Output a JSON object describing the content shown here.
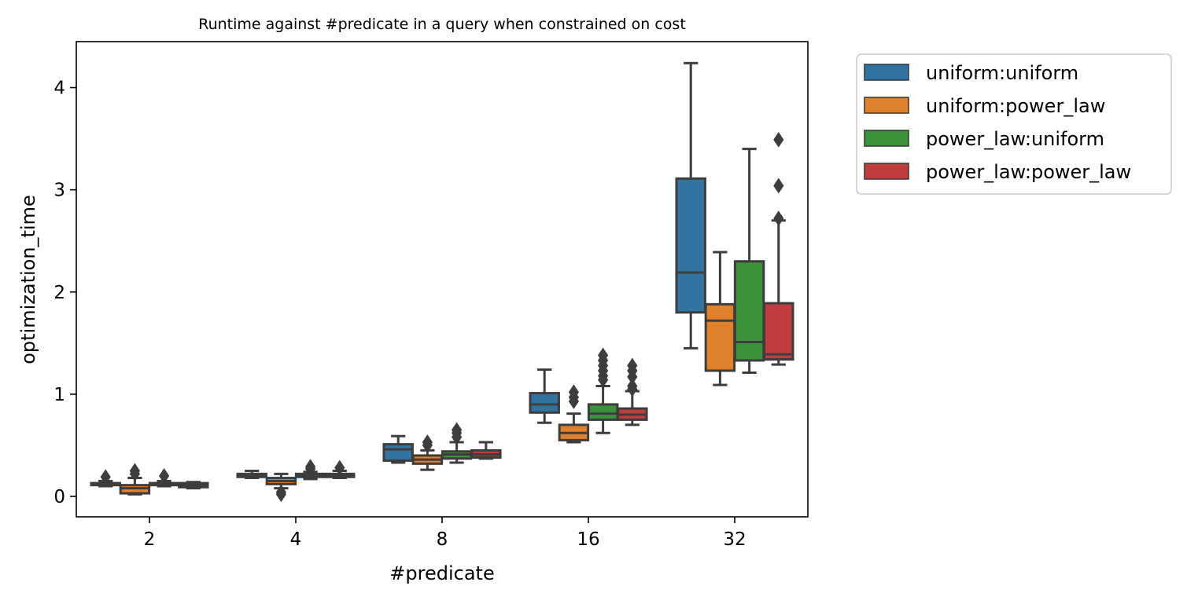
{
  "chart_data": {
    "type": "box",
    "title": "Runtime against #predicate in a query when constrained on cost",
    "xlabel": "#predicate",
    "ylabel": "optimization_time",
    "categories": [
      "2",
      "4",
      "8",
      "16",
      "32"
    ],
    "ylim": [
      -0.2,
      4.45
    ],
    "yticks": [
      0,
      1,
      2,
      3,
      4
    ],
    "legend_position": "outside-top-right",
    "series": [
      {
        "name": "uniform:uniform",
        "color": "#3274a1",
        "boxes": [
          {
            "whisker_low": 0.1,
            "q1": 0.11,
            "median": 0.12,
            "q3": 0.13,
            "whisker_high": 0.15,
            "outliers": [
              0.19
            ]
          },
          {
            "whisker_low": 0.18,
            "q1": 0.19,
            "median": 0.2,
            "q3": 0.22,
            "whisker_high": 0.25,
            "outliers": []
          },
          {
            "whisker_low": 0.33,
            "q1": 0.35,
            "median": 0.46,
            "q3": 0.51,
            "whisker_high": 0.59,
            "outliers": []
          },
          {
            "whisker_low": 0.72,
            "q1": 0.82,
            "median": 0.9,
            "q3": 1.01,
            "whisker_high": 1.24,
            "outliers": []
          },
          {
            "whisker_low": 1.45,
            "q1": 1.8,
            "median": 2.19,
            "q3": 3.11,
            "whisker_high": 4.24,
            "outliers": []
          }
        ]
      },
      {
        "name": "uniform:power_law",
        "color": "#e1812c",
        "boxes": [
          {
            "whisker_low": 0.02,
            "q1": 0.03,
            "median": 0.08,
            "q3": 0.11,
            "whisker_high": 0.18,
            "outliers": [
              0.22,
              0.25
            ]
          },
          {
            "whisker_low": 0.08,
            "q1": 0.12,
            "median": 0.15,
            "q3": 0.18,
            "whisker_high": 0.22,
            "outliers": [
              0.02,
              0.04
            ]
          },
          {
            "whisker_low": 0.26,
            "q1": 0.32,
            "median": 0.36,
            "q3": 0.4,
            "whisker_high": 0.45,
            "outliers": [
              0.5,
              0.53
            ]
          },
          {
            "whisker_low": 0.53,
            "q1": 0.55,
            "median": 0.62,
            "q3": 0.7,
            "whisker_high": 0.81,
            "outliers": [
              0.93,
              0.97,
              1.02
            ]
          },
          {
            "whisker_low": 1.09,
            "q1": 1.23,
            "median": 1.72,
            "q3": 1.88,
            "whisker_high": 2.39,
            "outliers": []
          }
        ]
      },
      {
        "name": "power_law:uniform",
        "color": "#3a923a",
        "boxes": [
          {
            "whisker_low": 0.1,
            "q1": 0.11,
            "median": 0.12,
            "q3": 0.13,
            "whisker_high": 0.15,
            "outliers": [
              0.2
            ]
          },
          {
            "whisker_low": 0.17,
            "q1": 0.19,
            "median": 0.2,
            "q3": 0.22,
            "whisker_high": 0.24,
            "outliers": [
              0.27,
              0.29
            ]
          },
          {
            "whisker_low": 0.33,
            "q1": 0.37,
            "median": 0.41,
            "q3": 0.44,
            "whisker_high": 0.53,
            "outliers": [
              0.58,
              0.62,
              0.65
            ]
          },
          {
            "whisker_low": 0.62,
            "q1": 0.75,
            "median": 0.81,
            "q3": 0.9,
            "whisker_high": 1.08,
            "outliers": [
              1.14,
              1.18,
              1.23,
              1.28,
              1.33,
              1.38
            ]
          },
          {
            "whisker_low": 1.21,
            "q1": 1.33,
            "median": 1.51,
            "q3": 2.3,
            "whisker_high": 3.4,
            "outliers": []
          }
        ]
      },
      {
        "name": "power_law:power_law",
        "color": "#c03d3e",
        "boxes": [
          {
            "whisker_low": 0.08,
            "q1": 0.09,
            "median": 0.11,
            "q3": 0.13,
            "whisker_high": 0.14,
            "outliers": []
          },
          {
            "whisker_low": 0.18,
            "q1": 0.19,
            "median": 0.2,
            "q3": 0.22,
            "whisker_high": 0.25,
            "outliers": [
              0.28
            ]
          },
          {
            "whisker_low": 0.37,
            "q1": 0.38,
            "median": 0.41,
            "q3": 0.45,
            "whisker_high": 0.53,
            "outliers": []
          },
          {
            "whisker_low": 0.7,
            "q1": 0.75,
            "median": 0.8,
            "q3": 0.86,
            "whisker_high": 1.03,
            "outliers": [
              1.05,
              1.08,
              1.17,
              1.23,
              1.28
            ]
          },
          {
            "whisker_low": 1.29,
            "q1": 1.34,
            "median": 1.39,
            "q3": 1.89,
            "whisker_high": 2.7,
            "outliers": [
              2.72,
              3.04,
              3.49
            ]
          }
        ]
      }
    ]
  }
}
